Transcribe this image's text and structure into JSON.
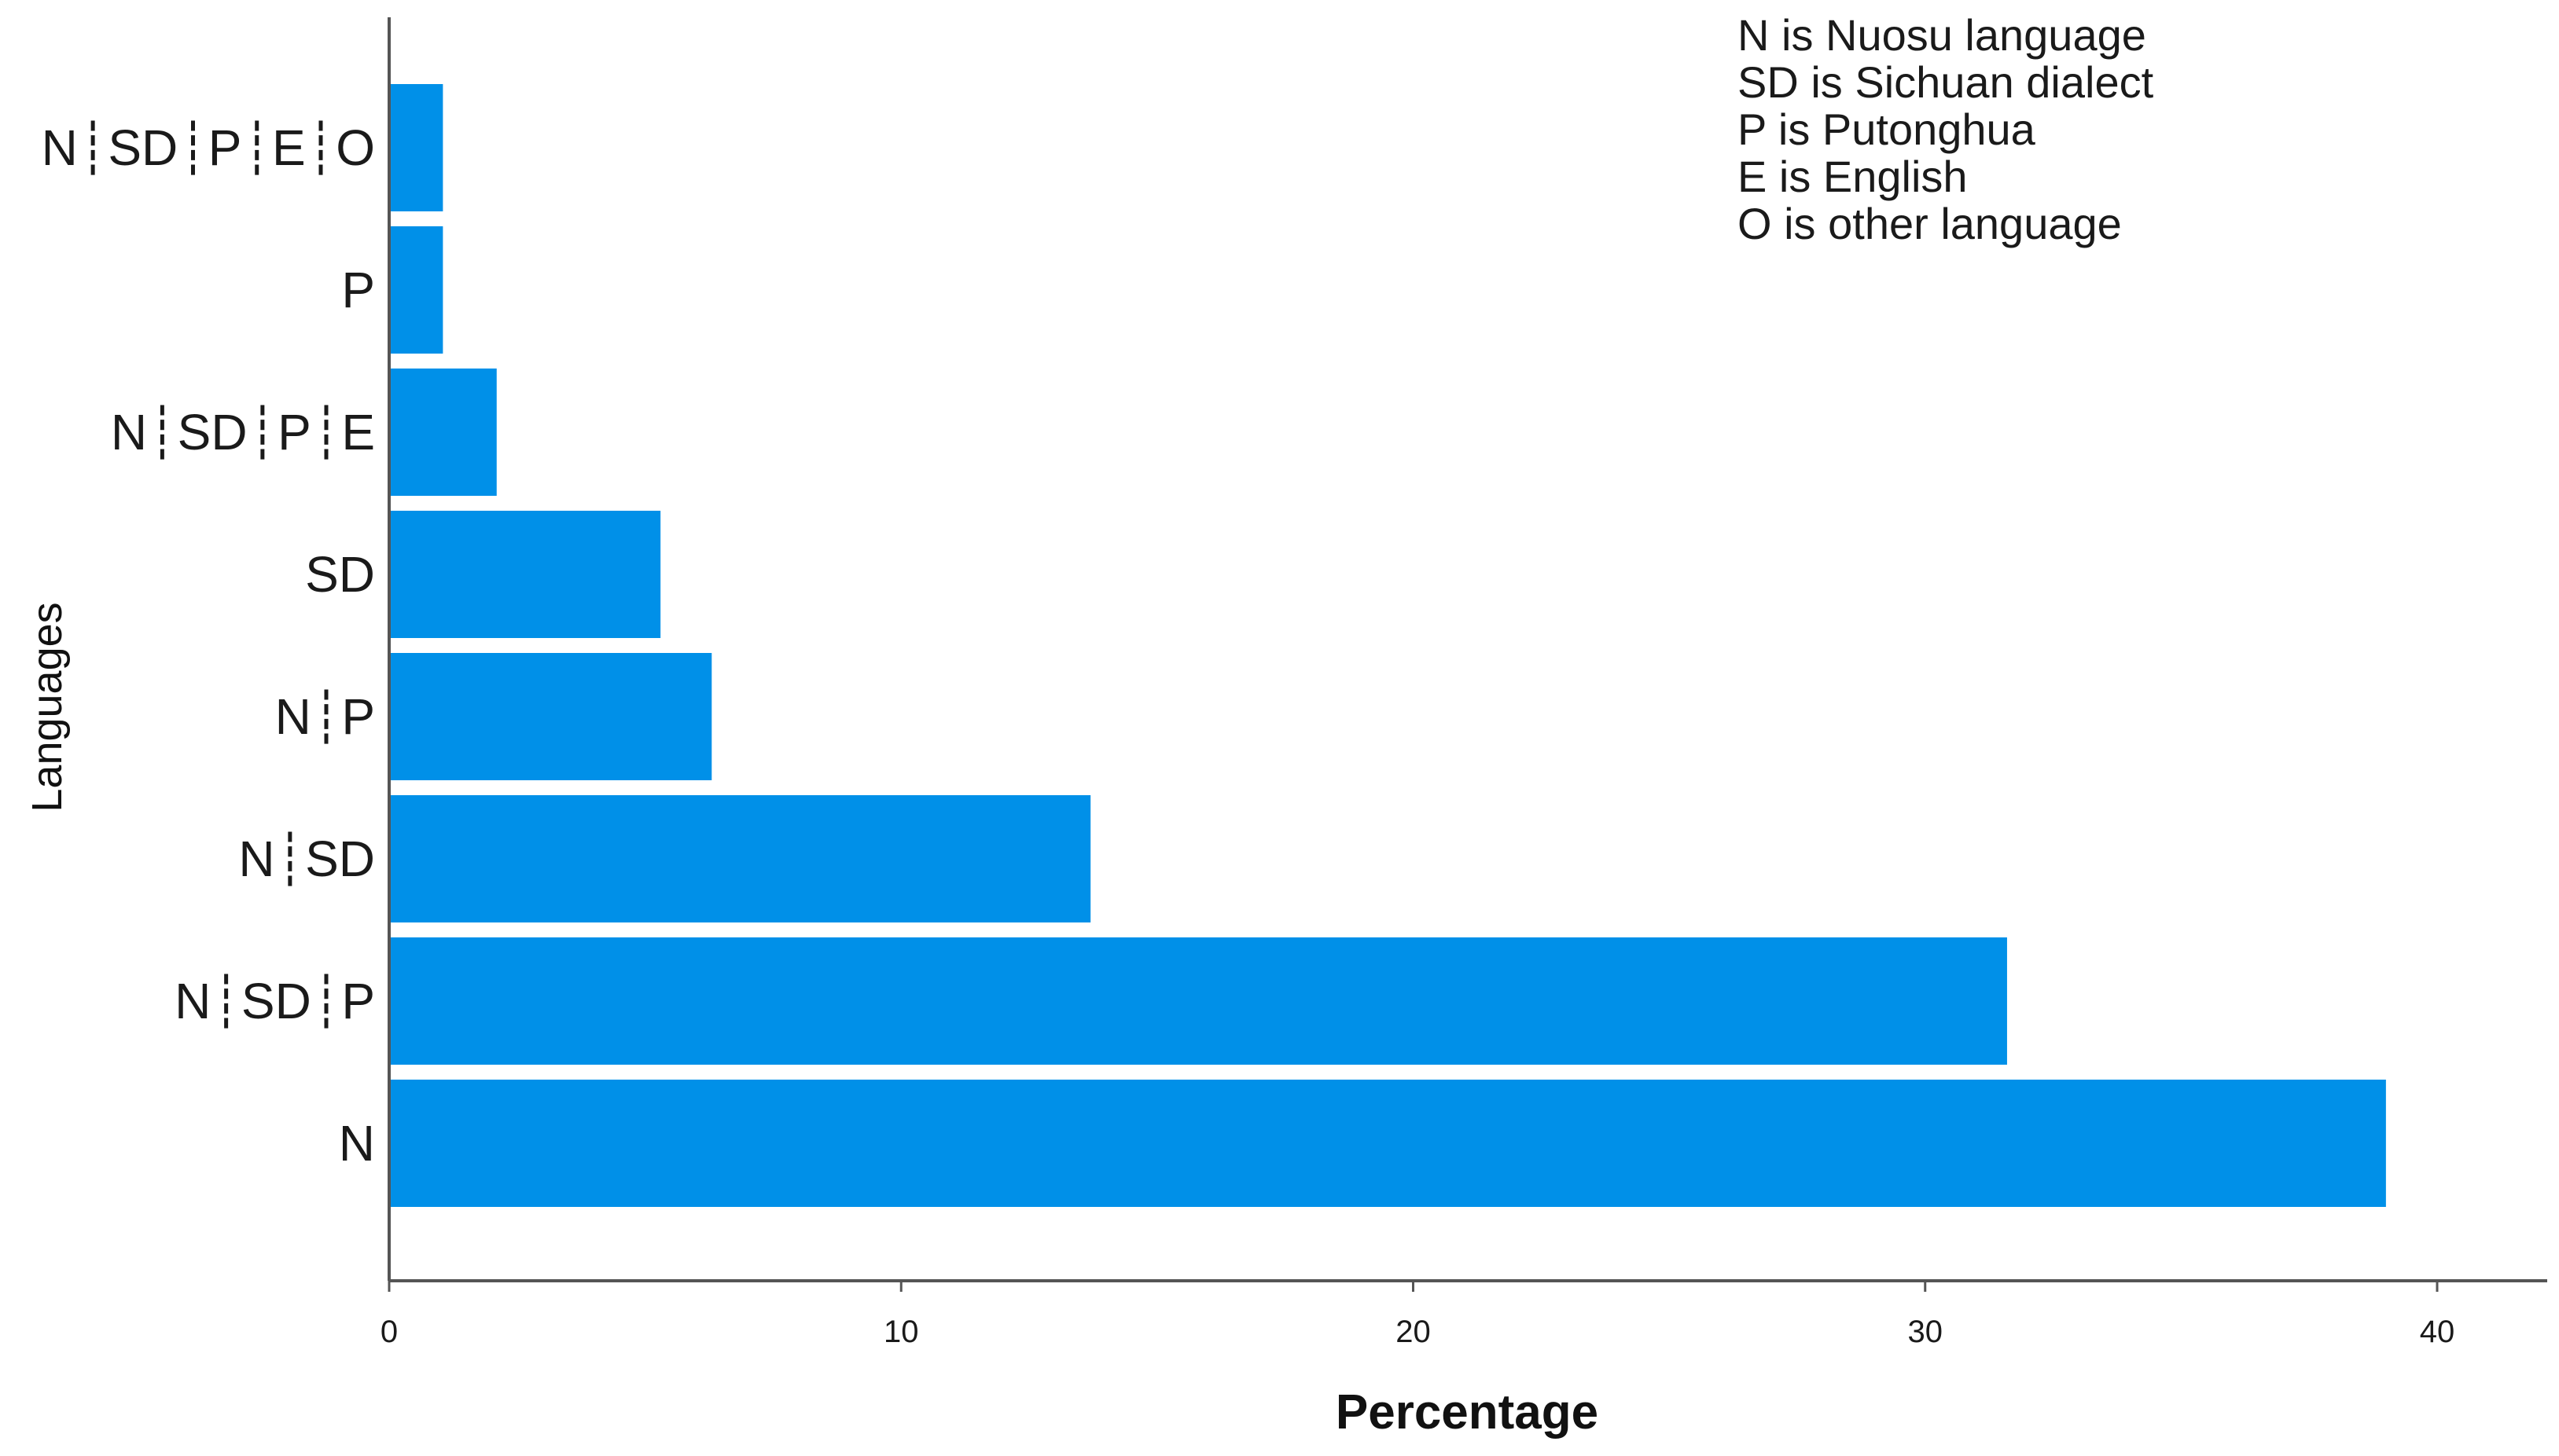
{
  "chart_data": {
    "type": "bar",
    "orientation": "horizontal",
    "categories": [
      "N",
      "N┊SD┊P",
      "N┊SD",
      "N┊P",
      "SD",
      "N┊SD┊P┊E",
      "P",
      "N┊SD┊P┊E┊O"
    ],
    "values": [
      39.0,
      31.6,
      13.7,
      6.3,
      5.3,
      2.1,
      1.05,
      1.05
    ],
    "xlabel": "Percentage",
    "ylabel": "Languages",
    "xlim": [
      0,
      42
    ],
    "xticks": [
      "0",
      "10",
      "20",
      "30",
      "40"
    ],
    "grid": false,
    "bar_color": "#0090e8",
    "annotation_lines": [
      "N is Nuosu language",
      "SD is Sichuan dialect",
      "P is Putonghua",
      "E is English",
      "O is other language"
    ]
  }
}
